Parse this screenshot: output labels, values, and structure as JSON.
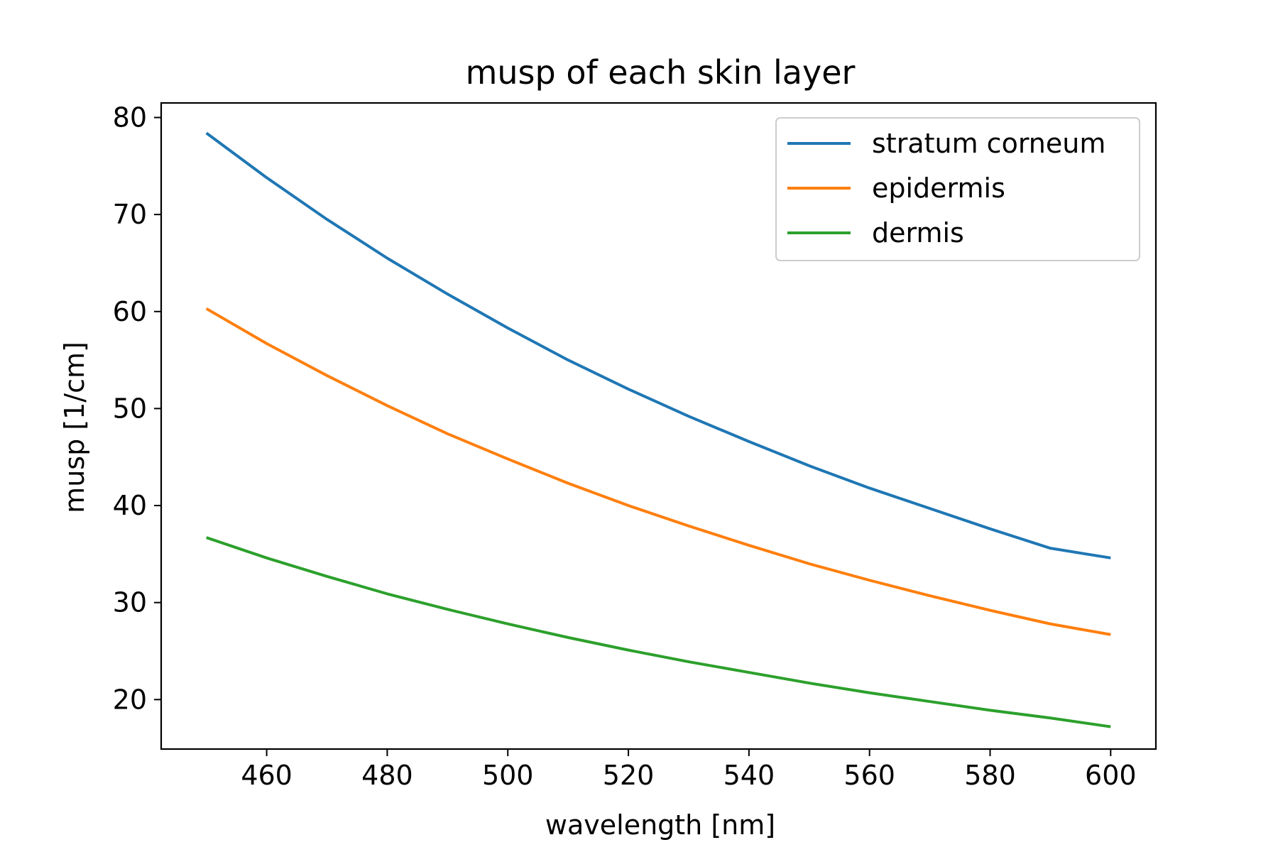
{
  "chart_data": {
    "type": "line",
    "title": "musp of each skin layer",
    "xlabel": "wavelength [nm]",
    "ylabel": "musp [1/cm]",
    "xlim": [
      442.5,
      607.5
    ],
    "ylim": [
      14.9,
      81.5
    ],
    "xticks": [
      460,
      480,
      500,
      520,
      540,
      560,
      580,
      600
    ],
    "yticks": [
      20,
      30,
      40,
      50,
      60,
      70,
      80
    ],
    "xtick_labels": [
      "460",
      "480",
      "500",
      "520",
      "540",
      "560",
      "580",
      "600"
    ],
    "ytick_labels": [
      "20",
      "30",
      "40",
      "50",
      "60",
      "70",
      "80"
    ],
    "grid": false,
    "legend_position": "top-right",
    "x": [
      450,
      460,
      470,
      480,
      490,
      500,
      510,
      520,
      530,
      540,
      550,
      560,
      570,
      580,
      590,
      600
    ],
    "series": [
      {
        "name": "stratum corneum",
        "color": "#1f77b4",
        "values": [
          78.4,
          73.8,
          69.5,
          65.5,
          61.8,
          58.3,
          55.0,
          52.0,
          49.2,
          46.6,
          44.1,
          41.8,
          39.7,
          37.6,
          35.6,
          34.6
        ]
      },
      {
        "name": "epidermis",
        "color": "#ff7f0e",
        "values": [
          60.3,
          56.7,
          53.4,
          50.3,
          47.4,
          44.8,
          42.3,
          40.0,
          37.9,
          35.9,
          34.0,
          32.3,
          30.7,
          29.2,
          27.8,
          26.7
        ]
      },
      {
        "name": "dermis",
        "color": "#2ca02c",
        "values": [
          36.7,
          34.6,
          32.7,
          30.9,
          29.3,
          27.8,
          26.4,
          25.1,
          23.9,
          22.8,
          21.7,
          20.7,
          19.8,
          18.9,
          18.1,
          17.2
        ]
      }
    ]
  }
}
